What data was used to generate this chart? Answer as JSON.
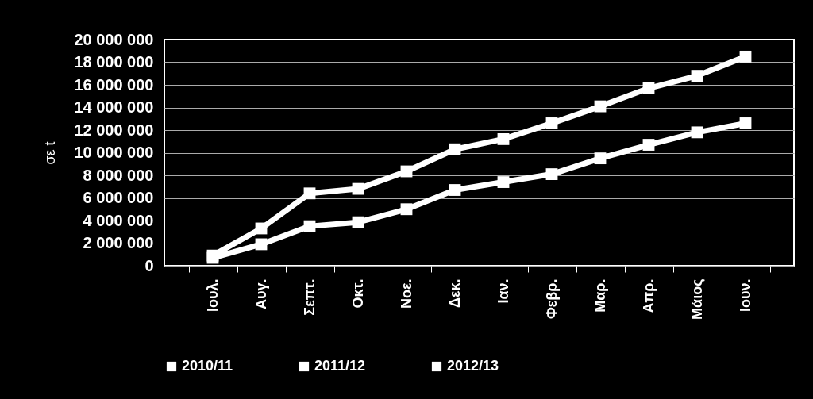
{
  "chart_data": {
    "type": "line",
    "ylabel": "σε t",
    "categories": [
      "Ιουλ.",
      "Αυγ.",
      "Σεπτ.",
      "Οκτ.",
      "Νοε.",
      "Δεκ.",
      "Ιαν.",
      "Φεβρ.",
      "Μαρ.",
      "Απρ.",
      "Μάιος",
      "Ιουν."
    ],
    "series": [
      {
        "name": "2010/11",
        "color": "#ffffff",
        "values": [
          900000,
          3300000,
          6400000,
          6800000,
          8350000,
          10300000,
          11200000,
          12600000,
          14100000,
          15700000,
          16800000,
          18500000
        ]
      },
      {
        "name": "2011/12",
        "color": "#ffffff",
        "values": [
          700000,
          1900000,
          3500000,
          3850000,
          5000000,
          6700000,
          7400000,
          8100000,
          9500000,
          10700000,
          11800000,
          12600000
        ]
      },
      {
        "name": "2012/13",
        "color": "#ffffff",
        "values": [
          null,
          null,
          null,
          null,
          null,
          null,
          null,
          null,
          null,
          null,
          null,
          null
        ]
      }
    ],
    "ylim": [
      0,
      20000000
    ],
    "yticks": [
      {
        "value": 0,
        "label": "0"
      },
      {
        "value": 2000000,
        "label": "2 000 000"
      },
      {
        "value": 4000000,
        "label": "4 000 000"
      },
      {
        "value": 6000000,
        "label": "6 000 000"
      },
      {
        "value": 8000000,
        "label": "8 000 000"
      },
      {
        "value": 10000000,
        "label": "10 000 000"
      },
      {
        "value": 12000000,
        "label": "12 000 000"
      },
      {
        "value": 14000000,
        "label": "14 000 000"
      },
      {
        "value": 16000000,
        "label": "16 000 000"
      },
      {
        "value": 18000000,
        "label": "18 000 000"
      },
      {
        "value": 20000000,
        "label": "20 000 000"
      }
    ],
    "grid": "y",
    "legend": "bottom",
    "marker": "square",
    "line_style": "solid"
  }
}
